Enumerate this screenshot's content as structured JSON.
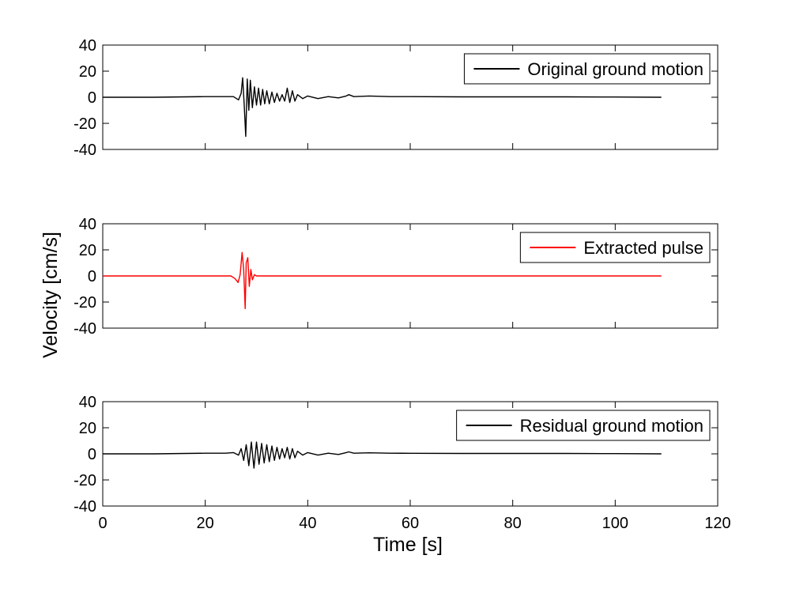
{
  "figure": {
    "xlabel": "Time [s]",
    "ylabel": "Velocity [cm/s]"
  },
  "chart_data": [
    {
      "type": "line",
      "xlim": [
        0,
        120
      ],
      "ylim": [
        -40,
        40
      ],
      "xticks": [
        0,
        20,
        40,
        60,
        80,
        100,
        120
      ],
      "yticks": [
        40,
        20,
        0,
        -20,
        -40
      ],
      "xtick_labels_visible": false,
      "legend_position": "top-right",
      "grid": false,
      "series": [
        {
          "name": "Original ground motion",
          "color": "#000000",
          "x": [
            0,
            10,
            20,
            24,
            25.5,
            26.5,
            27.0,
            27.3,
            27.6,
            27.9,
            28.2,
            28.5,
            28.8,
            29.2,
            29.6,
            30.0,
            30.4,
            30.8,
            31.2,
            31.6,
            32.0,
            32.5,
            33.0,
            33.5,
            34.0,
            34.5,
            35.0,
            35.5,
            36.0,
            36.5,
            37.0,
            37.5,
            38.0,
            39,
            40,
            42,
            44,
            46,
            47.5,
            48.0,
            49,
            52,
            56,
            60,
            70,
            80,
            90,
            100,
            109
          ],
          "y": [
            0,
            0,
            0.5,
            0.5,
            0.5,
            -2,
            3,
            15,
            -5,
            -30,
            14,
            -10,
            13,
            -8,
            8,
            -6,
            7,
            -6,
            6,
            -5,
            5,
            -5,
            4,
            -4,
            3,
            -3,
            2,
            -3,
            7,
            -4,
            5,
            -3,
            2,
            -1,
            1,
            -1,
            0.5,
            -0.5,
            1,
            2,
            0.5,
            1,
            0.5,
            0.5,
            0.3,
            0.3,
            0.3,
            0.2,
            0
          ]
        }
      ]
    },
    {
      "type": "line",
      "xlim": [
        0,
        120
      ],
      "ylim": [
        -40,
        40
      ],
      "xticks": [
        0,
        20,
        40,
        60,
        80,
        100,
        120
      ],
      "yticks": [
        40,
        20,
        0,
        -20,
        -40
      ],
      "xtick_labels_visible": false,
      "legend_position": "top-right",
      "grid": false,
      "series": [
        {
          "name": "Extracted pulse",
          "color": "#ff0000",
          "x": [
            0,
            25,
            25.8,
            26.4,
            26.8,
            27.2,
            27.5,
            27.8,
            28.0,
            28.3,
            28.6,
            28.9,
            29.2,
            29.6,
            30,
            109
          ],
          "y": [
            0,
            0,
            -2,
            -5,
            1,
            18,
            5,
            -25,
            10,
            14,
            -8,
            5,
            -3,
            1,
            0,
            0
          ]
        }
      ]
    },
    {
      "type": "line",
      "xlim": [
        0,
        120
      ],
      "ylim": [
        -40,
        40
      ],
      "xticks": [
        0,
        20,
        40,
        60,
        80,
        100,
        120
      ],
      "yticks": [
        40,
        20,
        0,
        -20,
        -40
      ],
      "xtick_labels_visible": true,
      "legend_position": "top-right",
      "grid": false,
      "series": [
        {
          "name": "Residual ground motion",
          "color": "#000000",
          "x": [
            0,
            10,
            20,
            24,
            25.5,
            26.5,
            27.0,
            27.5,
            28.0,
            28.5,
            29.0,
            29.5,
            30.0,
            30.5,
            31.0,
            31.5,
            32.0,
            32.5,
            33.0,
            33.5,
            34.0,
            34.5,
            35.0,
            35.5,
            36.0,
            36.5,
            37.0,
            37.5,
            38.0,
            39,
            40,
            42,
            44,
            46,
            47.5,
            48.0,
            49,
            52,
            56,
            60,
            70,
            80,
            90,
            100,
            109
          ],
          "y": [
            0,
            0,
            0.5,
            0.5,
            1,
            -1,
            4,
            -5,
            7,
            -9,
            9,
            -11,
            9,
            -8,
            8,
            -7,
            7,
            -6,
            6,
            -5,
            5,
            -4,
            4,
            -3,
            5,
            -4,
            4,
            -3,
            2,
            -1,
            1,
            -1,
            0.5,
            -0.5,
            1,
            1.5,
            0.5,
            0.8,
            0.5,
            0.4,
            0.3,
            0.3,
            0.3,
            0.2,
            0
          ]
        }
      ]
    }
  ]
}
